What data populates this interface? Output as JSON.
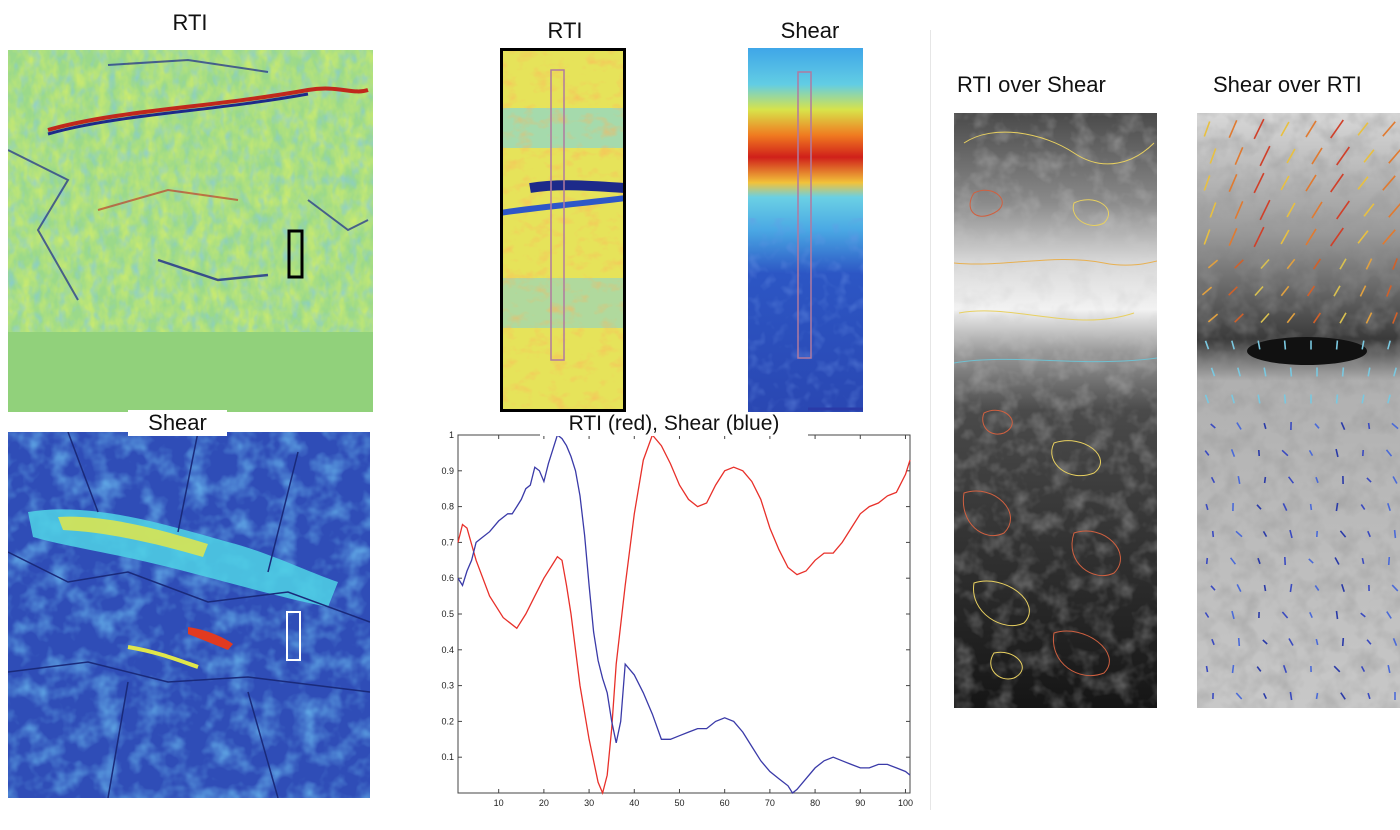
{
  "panels": {
    "rti_large_title": "RTI",
    "shear_large_title": "Shear",
    "rti_crop_title": "RTI",
    "shear_crop_title": "Shear",
    "rti_over_shear_title": "RTI over Shear",
    "shear_over_rti_title": "Shear over RTI"
  },
  "chart_data": {
    "type": "line",
    "title": "RTI (red), Shear (blue)",
    "xlabel": "",
    "ylabel": "",
    "xlim": [
      1,
      101
    ],
    "ylim": [
      0,
      1
    ],
    "xticks": [
      10,
      20,
      30,
      40,
      50,
      60,
      70,
      80,
      90,
      100
    ],
    "yticks": [
      0.1,
      0.2,
      0.3,
      0.4,
      0.5,
      0.6,
      0.7,
      0.8,
      0.9,
      1
    ],
    "grid": false,
    "series": [
      {
        "color": "#e8302a",
        "x": [
          1,
          2,
          3,
          5,
          8,
          11,
          14,
          16,
          18,
          20,
          22,
          23,
          24,
          25,
          26,
          27,
          28,
          30,
          32,
          33,
          34,
          35,
          36,
          38,
          40,
          42,
          44,
          46,
          48,
          50,
          52,
          54,
          56,
          58,
          60,
          62,
          64,
          66,
          68,
          70,
          72,
          74,
          76,
          78,
          80,
          82,
          84,
          86,
          88,
          90,
          92,
          94,
          96,
          98,
          100,
          101
        ],
        "y": [
          0.7,
          0.75,
          0.74,
          0.65,
          0.55,
          0.49,
          0.46,
          0.5,
          0.55,
          0.6,
          0.64,
          0.66,
          0.65,
          0.58,
          0.5,
          0.4,
          0.3,
          0.15,
          0.03,
          0.0,
          0.05,
          0.18,
          0.36,
          0.58,
          0.78,
          0.93,
          1.0,
          0.97,
          0.92,
          0.86,
          0.82,
          0.8,
          0.81,
          0.86,
          0.9,
          0.91,
          0.9,
          0.87,
          0.82,
          0.74,
          0.68,
          0.63,
          0.61,
          0.62,
          0.65,
          0.67,
          0.67,
          0.7,
          0.74,
          0.78,
          0.8,
          0.81,
          0.83,
          0.84,
          0.89,
          0.93
        ]
      },
      {
        "color": "#3a3aa8",
        "x": [
          1,
          2,
          3,
          4,
          5,
          6,
          8,
          10,
          12,
          13,
          14,
          15,
          16,
          17,
          18,
          19,
          20,
          21,
          22,
          23,
          24,
          25,
          26,
          27,
          28,
          29,
          30,
          31,
          32,
          33,
          34,
          35,
          36,
          37,
          38,
          40,
          42,
          44,
          46,
          48,
          50,
          52,
          54,
          56,
          58,
          60,
          62,
          64,
          66,
          68,
          70,
          72,
          74,
          75,
          76,
          78,
          80,
          82,
          84,
          86,
          88,
          90,
          92,
          94,
          96,
          98,
          100,
          101
        ],
        "y": [
          0.6,
          0.58,
          0.62,
          0.65,
          0.7,
          0.71,
          0.73,
          0.76,
          0.78,
          0.78,
          0.8,
          0.82,
          0.85,
          0.86,
          0.91,
          0.9,
          0.87,
          0.92,
          0.96,
          1.0,
          0.99,
          0.97,
          0.94,
          0.9,
          0.83,
          0.72,
          0.58,
          0.45,
          0.37,
          0.32,
          0.28,
          0.2,
          0.14,
          0.2,
          0.36,
          0.33,
          0.28,
          0.22,
          0.15,
          0.15,
          0.16,
          0.17,
          0.18,
          0.18,
          0.2,
          0.21,
          0.2,
          0.17,
          0.13,
          0.09,
          0.06,
          0.04,
          0.02,
          0.0,
          0.01,
          0.04,
          0.07,
          0.09,
          0.1,
          0.09,
          0.08,
          0.07,
          0.07,
          0.08,
          0.08,
          0.07,
          0.06,
          0.05
        ]
      }
    ]
  }
}
